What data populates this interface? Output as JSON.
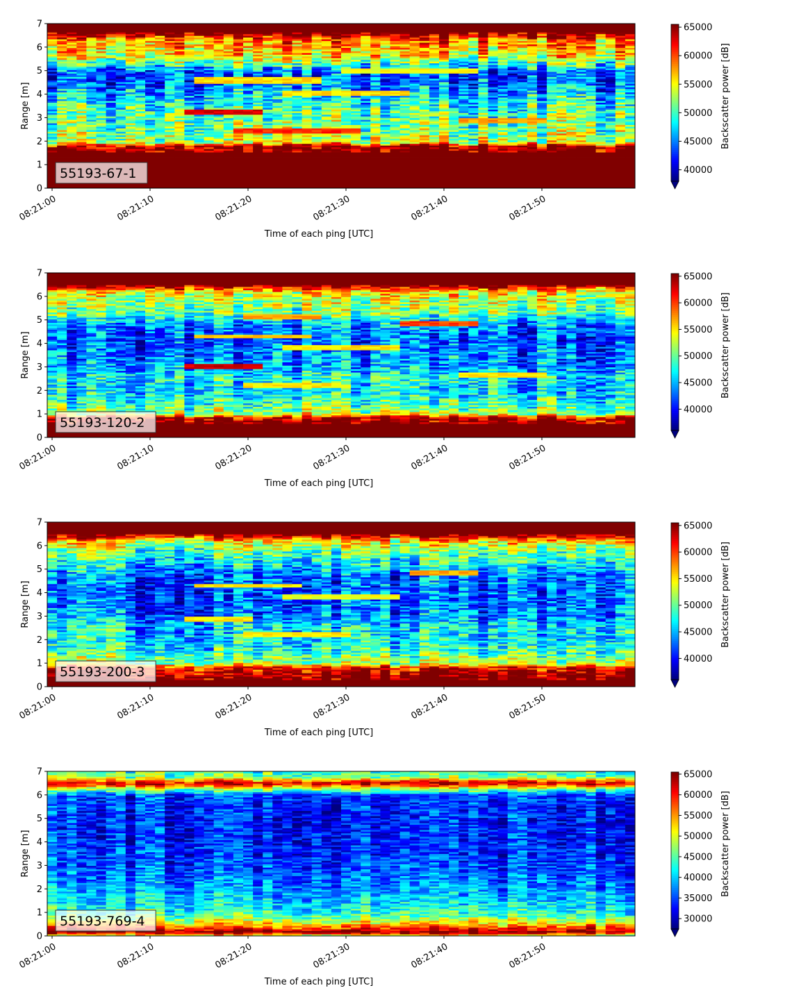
{
  "chart_data": [
    {
      "type": "heatmap",
      "label": "55193-67-1",
      "xlabel": "Time of each ping [UTC]",
      "ylabel": "Range [m]",
      "colorbar_label": "Backscatter power [dB]",
      "colormap": "jet",
      "x_start": "08:21:00",
      "x_end": "08:21:59",
      "x_ticks": [
        "08:21:00",
        "08:21:10",
        "08:21:20",
        "08:21:30",
        "08:21:40",
        "08:21:50"
      ],
      "ylim": [
        0,
        7
      ],
      "y_ticks": [
        0,
        1,
        2,
        3,
        4,
        5,
        6,
        7
      ],
      "clim": [
        38000,
        65500
      ],
      "colorbar_ticks": [
        40000,
        45000,
        50000,
        55000,
        60000,
        65000
      ],
      "profile": [
        [
          0.1,
          65500
        ],
        [
          0.3,
          65500
        ],
        [
          0.6,
          65500
        ],
        [
          1.0,
          65500
        ],
        [
          1.5,
          65500
        ],
        [
          1.8,
          64000
        ],
        [
          1.95,
          54000
        ],
        [
          2.3,
          52000
        ],
        [
          2.7,
          51000
        ],
        [
          3.2,
          50000
        ],
        [
          3.6,
          49000
        ],
        [
          4.1,
          46000
        ],
        [
          4.5,
          44000
        ],
        [
          4.9,
          43000
        ],
        [
          5.2,
          48000
        ],
        [
          5.6,
          55000
        ],
        [
          6.0,
          57000
        ],
        [
          6.3,
          58000
        ],
        [
          6.6,
          65500
        ],
        [
          7.0,
          65500
        ]
      ],
      "features": [
        {
          "t0": 14,
          "t1": 21,
          "r": 3.25,
          "w": 0.12,
          "v": 63000
        },
        {
          "t0": 19,
          "t1": 31,
          "r": 2.45,
          "w": 0.12,
          "v": 61000
        },
        {
          "t0": 15,
          "t1": 27,
          "r": 4.6,
          "w": 0.12,
          "v": 56000
        },
        {
          "t0": 24,
          "t1": 36,
          "r": 4.05,
          "w": 0.12,
          "v": 56000
        },
        {
          "t0": 30,
          "t1": 43,
          "r": 5.0,
          "w": 0.12,
          "v": 55000
        },
        {
          "t0": 42,
          "t1": 50,
          "r": 2.9,
          "w": 0.12,
          "v": 58000
        }
      ]
    },
    {
      "type": "heatmap",
      "label": "55193-120-2",
      "xlabel": "Time of each ping [UTC]",
      "ylabel": "Range [m]",
      "colorbar_label": "Backscatter power [dB]",
      "colormap": "jet",
      "x_start": "08:21:00",
      "x_end": "08:21:59",
      "x_ticks": [
        "08:21:00",
        "08:21:10",
        "08:21:20",
        "08:21:30",
        "08:21:40",
        "08:21:50"
      ],
      "ylim": [
        0,
        7
      ],
      "y_ticks": [
        0,
        1,
        2,
        3,
        4,
        5,
        6,
        7
      ],
      "clim": [
        36000,
        65500
      ],
      "colorbar_ticks": [
        40000,
        45000,
        50000,
        55000,
        60000,
        65000
      ],
      "profile": [
        [
          0.1,
          65500
        ],
        [
          0.3,
          65500
        ],
        [
          0.6,
          65500
        ],
        [
          0.85,
          63000
        ],
        [
          1.0,
          52000
        ],
        [
          1.5,
          48000
        ],
        [
          2.0,
          46000
        ],
        [
          2.6,
          47000
        ],
        [
          3.0,
          44000
        ],
        [
          3.6,
          43000
        ],
        [
          4.2,
          42000
        ],
        [
          4.8,
          44000
        ],
        [
          5.3,
          50000
        ],
        [
          5.8,
          52000
        ],
        [
          6.2,
          55000
        ],
        [
          6.5,
          65500
        ],
        [
          7.0,
          65500
        ]
      ],
      "features": [
        {
          "t0": 14,
          "t1": 21,
          "r": 3.0,
          "w": 0.1,
          "v": 63000
        },
        {
          "t0": 20,
          "t1": 29,
          "r": 2.2,
          "w": 0.1,
          "v": 55000
        },
        {
          "t0": 15,
          "t1": 26,
          "r": 4.3,
          "w": 0.1,
          "v": 56000
        },
        {
          "t0": 24,
          "t1": 35,
          "r": 3.85,
          "w": 0.1,
          "v": 55000
        },
        {
          "t0": 36,
          "t1": 43,
          "r": 4.85,
          "w": 0.1,
          "v": 60000
        },
        {
          "t0": 42,
          "t1": 50,
          "r": 2.65,
          "w": 0.1,
          "v": 55000
        },
        {
          "t0": 20,
          "t1": 27,
          "r": 5.15,
          "w": 0.1,
          "v": 57000
        }
      ]
    },
    {
      "type": "heatmap",
      "label": "55193-200-3",
      "xlabel": "Time of each ping [UTC]",
      "ylabel": "Range [m]",
      "colorbar_label": "Backscatter power [dB]",
      "colormap": "jet",
      "x_start": "08:21:00",
      "x_end": "08:21:59",
      "x_ticks": [
        "08:21:00",
        "08:21:10",
        "08:21:20",
        "08:21:30",
        "08:21:40",
        "08:21:50"
      ],
      "ylim": [
        0,
        7
      ],
      "y_ticks": [
        0,
        1,
        2,
        3,
        4,
        5,
        6,
        7
      ],
      "clim": [
        36000,
        65500
      ],
      "colorbar_ticks": [
        40000,
        45000,
        50000,
        55000,
        60000,
        65000
      ],
      "profile": [
        [
          0.1,
          65500
        ],
        [
          0.3,
          65500
        ],
        [
          0.6,
          64000
        ],
        [
          0.85,
          60000
        ],
        [
          1.0,
          52000
        ],
        [
          1.5,
          48000
        ],
        [
          2.0,
          46000
        ],
        [
          2.6,
          46000
        ],
        [
          3.0,
          43000
        ],
        [
          3.6,
          42000
        ],
        [
          4.2,
          42000
        ],
        [
          4.8,
          43000
        ],
        [
          5.3,
          47000
        ],
        [
          5.8,
          50000
        ],
        [
          6.2,
          55000
        ],
        [
          6.5,
          65500
        ],
        [
          7.0,
          65500
        ]
      ],
      "features": [
        {
          "t0": 14,
          "t1": 20,
          "r": 2.9,
          "w": 0.1,
          "v": 55000
        },
        {
          "t0": 20,
          "t1": 30,
          "r": 2.25,
          "w": 0.1,
          "v": 55000
        },
        {
          "t0": 15,
          "t1": 25,
          "r": 4.3,
          "w": 0.1,
          "v": 55000
        },
        {
          "t0": 24,
          "t1": 35,
          "r": 3.85,
          "w": 0.1,
          "v": 54000
        },
        {
          "t0": 37,
          "t1": 43,
          "r": 4.85,
          "w": 0.1,
          "v": 57000
        }
      ]
    },
    {
      "type": "heatmap",
      "label": "55193-769-4",
      "xlabel": "Time of each ping [UTC]",
      "ylabel": "Range [m]",
      "colorbar_label": "Backscatter power [dB]",
      "colormap": "jet",
      "x_start": "08:21:00",
      "x_end": "08:21:59",
      "x_ticks": [
        "08:21:00",
        "08:21:10",
        "08:21:20",
        "08:21:30",
        "08:21:40",
        "08:21:50"
      ],
      "ylim": [
        0,
        7
      ],
      "y_ticks": [
        0,
        1,
        2,
        3,
        4,
        5,
        6,
        7
      ],
      "clim": [
        27500,
        65500
      ],
      "colorbar_ticks": [
        30000,
        35000,
        40000,
        45000,
        50000,
        55000,
        60000,
        65000
      ],
      "profile": [
        [
          0.05,
          52000
        ],
        [
          0.15,
          65500
        ],
        [
          0.3,
          60000
        ],
        [
          0.55,
          52000
        ],
        [
          0.9,
          44000
        ],
        [
          1.5,
          40000
        ],
        [
          2.0,
          38000
        ],
        [
          2.6,
          36000
        ],
        [
          3.2,
          34500
        ],
        [
          4.0,
          33500
        ],
        [
          4.8,
          33000
        ],
        [
          5.5,
          33500
        ],
        [
          6.0,
          35000
        ],
        [
          6.3,
          50000
        ],
        [
          6.5,
          63000
        ],
        [
          6.75,
          47000
        ],
        [
          7.0,
          44000
        ]
      ],
      "features": []
    }
  ]
}
